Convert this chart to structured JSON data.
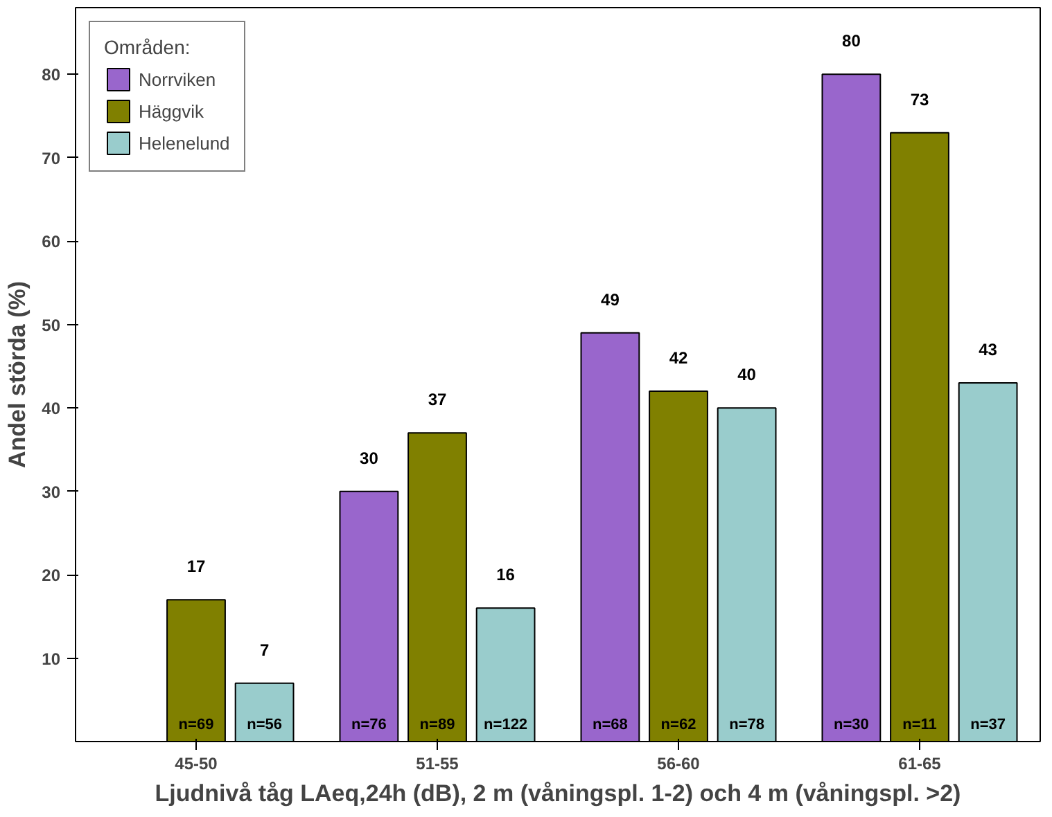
{
  "chart_data": {
    "type": "bar",
    "xlabel": "Ljudnivå tåg LAeq,24h (dB), 2 m (våningspl. 1-2) och 4 m (våningspl. >2)",
    "ylabel": "Andel störda (%)",
    "legend_title": "Områden:",
    "categories": [
      "45-50",
      "51-55",
      "56-60",
      "61-65"
    ],
    "series": [
      {
        "name": "Norrviken",
        "color": "#9966cc",
        "values": [
          null,
          30,
          49,
          80
        ]
      },
      {
        "name": "Häggvik",
        "color": "#808000",
        "values": [
          17,
          37,
          42,
          73
        ]
      },
      {
        "name": "Helenelund",
        "color": "#99cccc",
        "values": [
          7,
          16,
          40,
          43
        ]
      }
    ],
    "ylim": [
      0,
      88
    ],
    "yticks": [
      10,
      20,
      30,
      40,
      50,
      60,
      70,
      80
    ],
    "grid": false,
    "legend": "top left",
    "data_labels": true,
    "annotations": [
      "n=69",
      "n=56",
      "n=76",
      "n=89",
      "n=122",
      "n=68",
      "n=62",
      "n=78",
      "n=30",
      "n=11",
      "n=37"
    ]
  }
}
